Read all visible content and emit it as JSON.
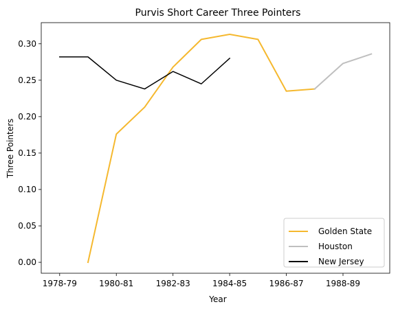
{
  "chart_data": {
    "type": "line",
    "title": "Purvis Short Career Three Pointers",
    "xlabel": "Year",
    "ylabel": "Three Pointers",
    "x_ticks": [
      "1978-79",
      "1980-81",
      "1982-83",
      "1984-85",
      "1986-87",
      "1988-89"
    ],
    "x_tick_positions": [
      0,
      2,
      4,
      6,
      8,
      10
    ],
    "xlim": [
      -0.65,
      11.65
    ],
    "ylim": [
      -0.015,
      0.329
    ],
    "y_ticks": [
      0.0,
      0.05,
      0.1,
      0.15,
      0.2,
      0.25,
      0.3
    ],
    "y_tick_labels": [
      "0.00",
      "0.05",
      "0.10",
      "0.15",
      "0.20",
      "0.25",
      "0.30"
    ],
    "grid": false,
    "legend_position": "lower-right",
    "series": [
      {
        "name": "Golden State",
        "color": "#f5b82e",
        "width": 2,
        "x": [
          1,
          2,
          3,
          4,
          5,
          6,
          7,
          8,
          9
        ],
        "y": [
          0.0,
          0.176,
          0.213,
          0.268,
          0.306,
          0.313,
          0.306,
          0.235,
          0.238
        ]
      },
      {
        "name": "Houston",
        "color": "#bfbfbf",
        "width": 2,
        "x": [
          9,
          10,
          11
        ],
        "y": [
          0.238,
          0.273,
          0.286
        ]
      },
      {
        "name": "New Jersey",
        "color": "#000000",
        "width": 1.5,
        "x": [
          0,
          1,
          2,
          3,
          4,
          5,
          6
        ],
        "y": [
          0.282,
          0.282,
          0.25,
          0.238,
          0.262,
          0.245,
          0.28
        ]
      }
    ]
  }
}
